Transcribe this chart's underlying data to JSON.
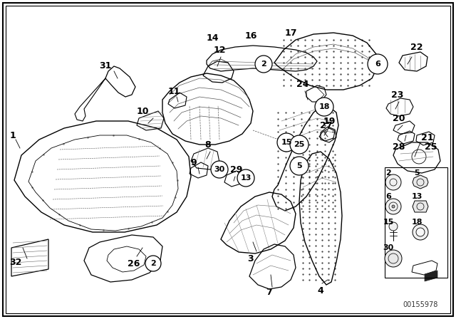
{
  "part_number_img": "00155978",
  "background_color": "#ffffff",
  "fig_width": 6.4,
  "fig_height": 4.48,
  "dpi": 100,
  "text_color": "#000000",
  "line_color": "#000000",
  "border_lw": 1.5,
  "inner_border_lw": 0.8,
  "label_fontsize": 9,
  "circle_fontsize": 8
}
